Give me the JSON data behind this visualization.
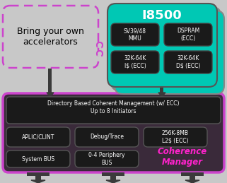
{
  "fig_bg": "#c8c8c8",
  "teal_color": "#00c8b4",
  "black_box": "#1a1a1a",
  "dark_bg": "#2a2a2a",
  "purple_border": "#cc44cc",
  "dashed_box_color": "#cc44cc",
  "white_text": "#ffffff",
  "black_text": "#000000",
  "coherence_pink": "#ff22cc",
  "gray_shadow": "#888888",
  "gray_arrow": "#3a3a3a",
  "coherence_bg": "#3a2a3a",
  "title_i8500": "I8500",
  "byo_line1": "Bring your own",
  "byo_line2": "accelerators",
  "dir_line1": "Directory Based Coherent Management (w/ ECC)",
  "dir_line2": "Up to 8 Initiators",
  "box_labels": [
    "SV39/48\nMMU",
    "DSPRAM\n(ECC)",
    "32K-64K\nI$ (ECC)",
    "32K-64K\nD$ (ECC)"
  ],
  "row2_labels": [
    "APLIC/CLINT",
    "Debug/Trace",
    "256K-8MB\nL2$ (ECC)"
  ],
  "row3_labels": [
    "System BUS",
    "0-4 Periphery\nBUS"
  ],
  "coherence_line1": "Coherence",
  "coherence_line2": "Manager"
}
